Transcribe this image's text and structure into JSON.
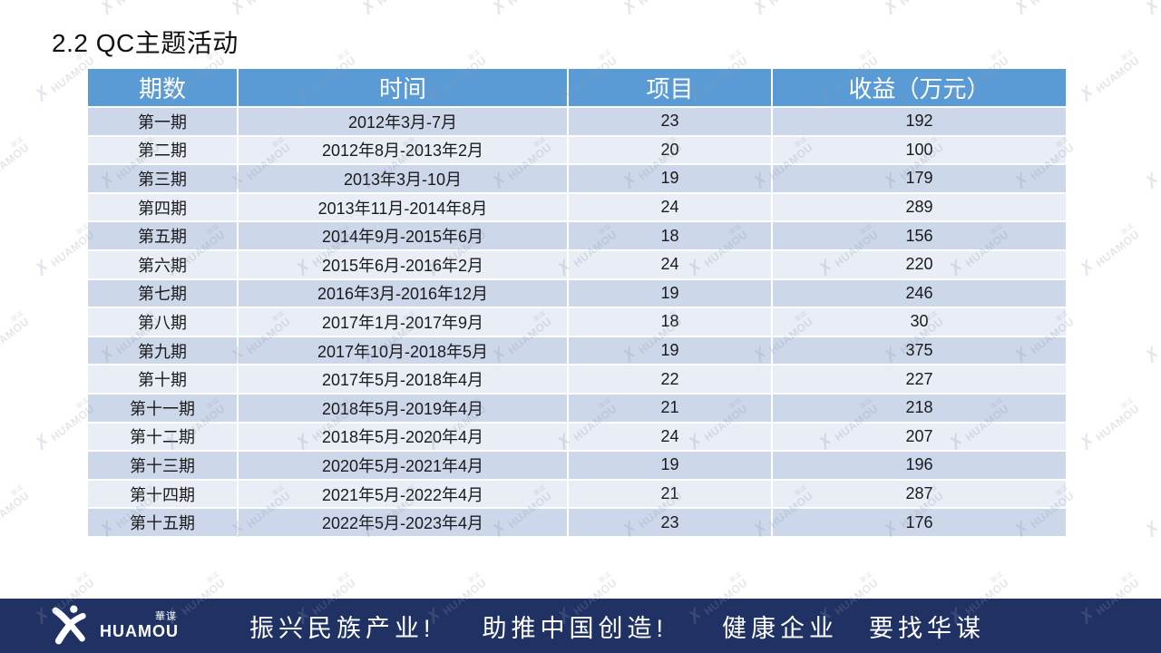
{
  "title": "2.2 QC主题活动",
  "table": {
    "headers": [
      "期数",
      "时间",
      "项目",
      "收益（万元）"
    ],
    "rows": [
      [
        "第一期",
        "2012年3月-7月",
        "23",
        "192"
      ],
      [
        "第二期",
        "2012年8月-2013年2月",
        "20",
        "100"
      ],
      [
        "第三期",
        "2013年3月-10月",
        "19",
        "179"
      ],
      [
        "第四期",
        "2013年11月-2014年8月",
        "24",
        "289"
      ],
      [
        "第五期",
        "2014年9月-2015年6月",
        "18",
        "156"
      ],
      [
        "第六期",
        "2015年6月-2016年2月",
        "24",
        "220"
      ],
      [
        "第七期",
        "2016年3月-2016年12月",
        "19",
        "246"
      ],
      [
        "第八期",
        "2017年1月-2017年9月",
        "18",
        "30"
      ],
      [
        "第九期",
        "2017年10月-2018年5月",
        "19",
        "375"
      ],
      [
        "第十期",
        "2017年5月-2018年4月",
        "22",
        "227"
      ],
      [
        "第十一期",
        "2018年5月-2019年4月",
        "21",
        "218"
      ],
      [
        "第十二期",
        "2018年5月-2020年4月",
        "24",
        "207"
      ],
      [
        "第十三期",
        "2020年5月-2021年4月",
        "19",
        "196"
      ],
      [
        "第十四期",
        "2021年5月-2022年4月",
        "21",
        "287"
      ],
      [
        "第十五期",
        "2022年5月-2023年4月",
        "23",
        "176"
      ]
    ]
  },
  "footer": {
    "logo_en": "HUAMOU",
    "logo_cn": "華谋",
    "slogans": [
      "振兴民族产业!",
      "助推中国创造!",
      "健康企业",
      "要找华谋"
    ]
  },
  "watermark": {
    "en": "HUAMOU",
    "cn": "華谋",
    "figure_glyph": "✗"
  },
  "colors": {
    "header_bg": "#5B9BD5",
    "row_odd": "#CDD7EA",
    "row_even": "#E9EDF5",
    "footer_bg": "#1F3263",
    "header_text": "#FFFFFF",
    "body_text": "#1A1A1A"
  }
}
